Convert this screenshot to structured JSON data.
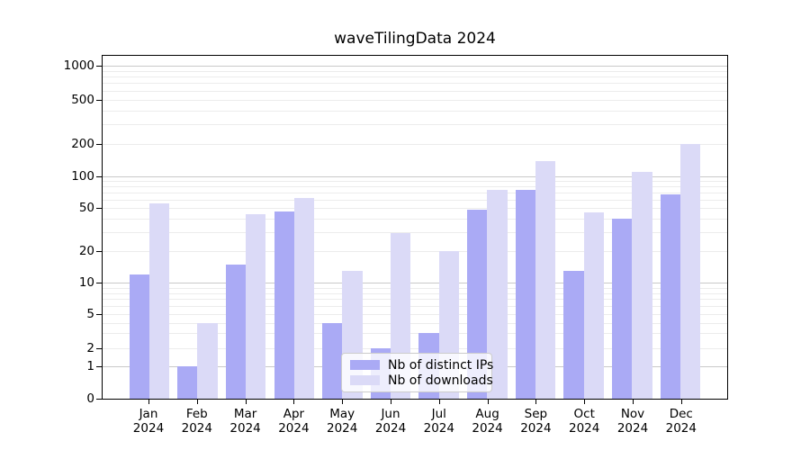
{
  "page": {
    "background": "#ffffff"
  },
  "chart_data": {
    "type": "bar",
    "title": "waveTilingData 2024",
    "categories": [
      "Jan",
      "Feb",
      "Mar",
      "Apr",
      "May",
      "Jun",
      "Jul",
      "Aug",
      "Sep",
      "Oct",
      "Nov",
      "Dec"
    ],
    "category_year": "2024",
    "series": [
      {
        "name": "Nb of distinct IPs",
        "color": "#aaaaf5",
        "values": [
          12,
          1,
          15,
          47,
          4,
          2,
          3,
          48,
          75,
          13,
          40,
          68
        ]
      },
      {
        "name": "Nb of downloads",
        "color": "#dbdaf7",
        "values": [
          55,
          4,
          44,
          63,
          13,
          29,
          20,
          75,
          140,
          46,
          110,
          200
        ]
      }
    ],
    "xlabel": "",
    "ylabel": "",
    "yticks": [
      0,
      1,
      2,
      5,
      10,
      20,
      50,
      100,
      200,
      500,
      1000
    ],
    "yscale": "log-like (compressed linear segment below 2, zero baseline)",
    "ylim": [
      0,
      1200
    ],
    "grid": {
      "on": true,
      "minor_values": [
        2,
        3,
        4,
        5,
        6,
        7,
        8,
        9,
        20,
        30,
        40,
        50,
        60,
        70,
        80,
        90,
        200,
        300,
        400,
        500,
        600,
        700,
        800,
        900
      ],
      "major_values": [
        1,
        10,
        100,
        1000
      ],
      "minor_color": "#ececec",
      "major_color": "#c9c9c9"
    },
    "legend": {
      "position": "lower-center",
      "background": "rgba(255,255,255,0.8)",
      "border_color": "#cccccc"
    }
  },
  "axes": {
    "spine_color": "#000000",
    "tick_color": "#000000",
    "label_color": "#000000"
  }
}
